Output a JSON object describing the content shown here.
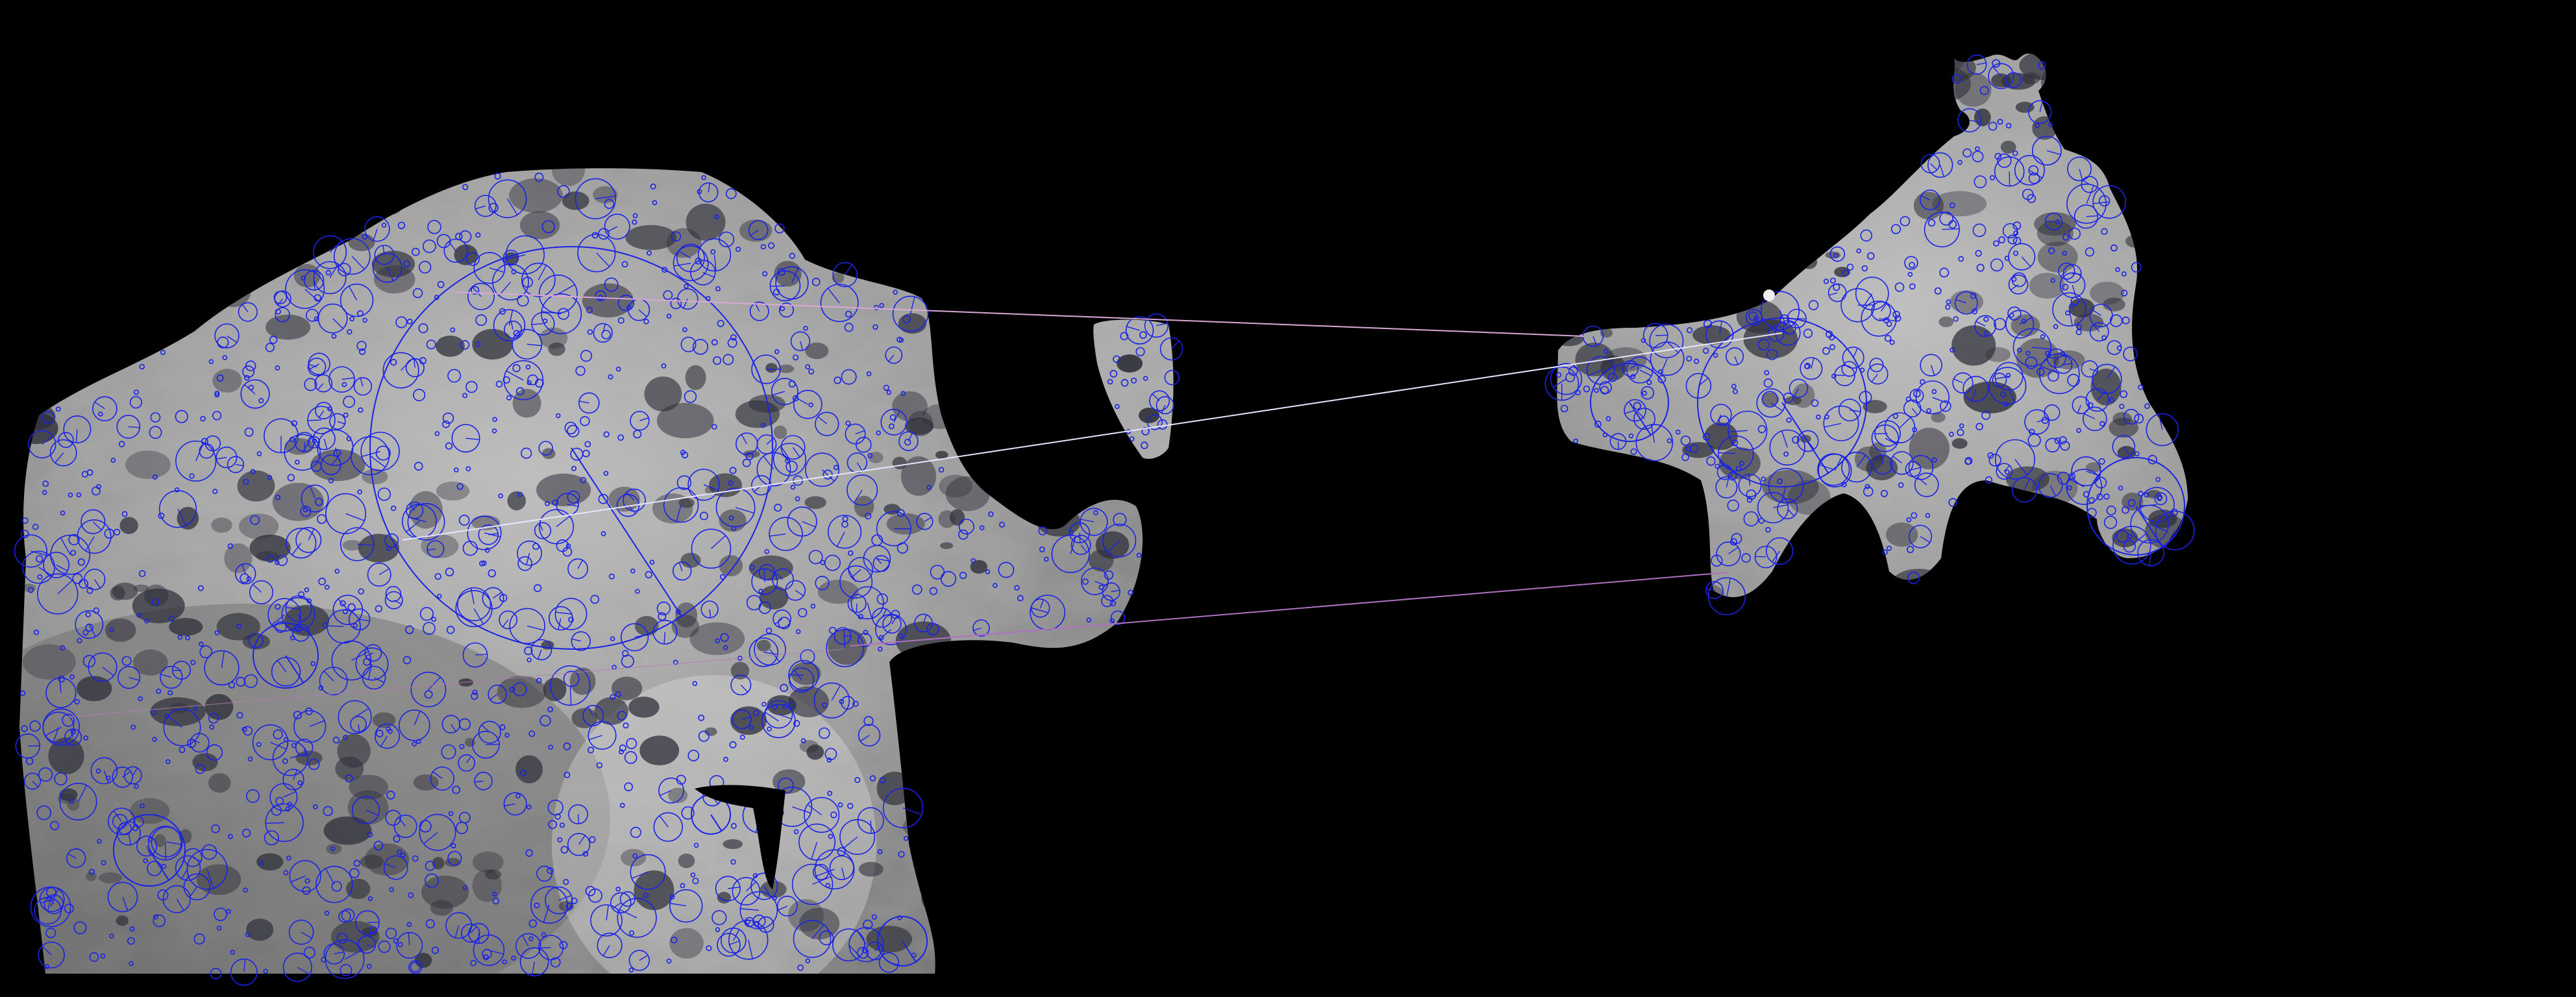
{
  "scene": {
    "background_color": "#000000",
    "fur_light_color": "#c9c9c9",
    "fur_mid_color": "#8e8e8e",
    "fur_dark_color": "#3a3a3a",
    "rosette_color": "#2f2f3a",
    "keypoint_color": "#1a22e6",
    "match_line_colors": [
      "#d8a8d8",
      "#e6e6ff",
      "#b070c0",
      "#b080b0"
    ]
  },
  "patches": [
    {
      "name": "left-fur-patch"
    },
    {
      "name": "middle-small-fur-patch"
    },
    {
      "name": "right-fur-patch"
    }
  ],
  "keypoints_visible": true,
  "match_lines_count": 4
}
